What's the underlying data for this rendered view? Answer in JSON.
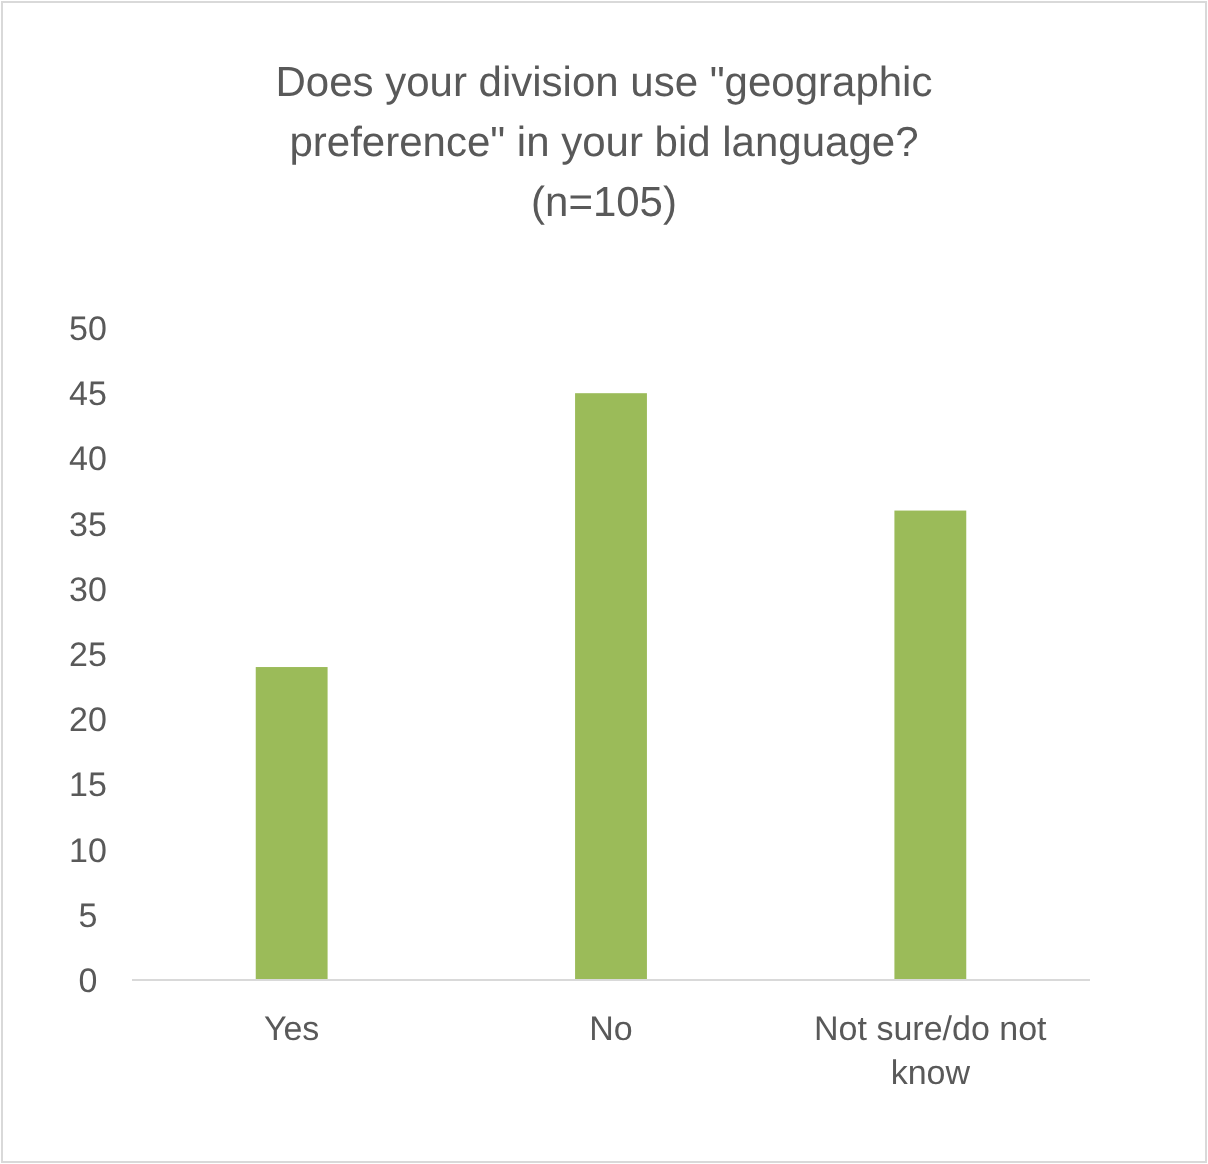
{
  "chart_data": {
    "type": "bar",
    "title": "Does your division use \"geographic preference\" in your bid language? (n=105)",
    "categories": [
      "Yes",
      "No",
      "Not sure/do not know"
    ],
    "values": [
      24,
      45,
      36
    ],
    "color": "#9bbb59",
    "ylim": [
      0,
      50
    ],
    "yticks": [
      0,
      5,
      10,
      15,
      20,
      25,
      30,
      35,
      40,
      45,
      50
    ],
    "grid": false
  }
}
